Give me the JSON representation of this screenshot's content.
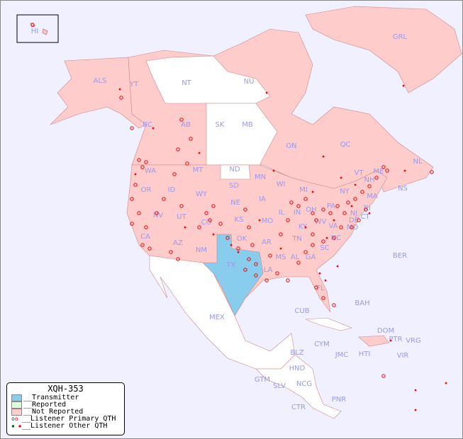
{
  "title": "XQH-353",
  "legend": {
    "transmitter": "__Transmitter",
    "reported": "__Reported",
    "not_reported": "__Not Reported",
    "primary": "__Listener Primary QTH",
    "other": "__Listener Other QTH"
  },
  "colors": {
    "transmitter": "#88ccee",
    "reported": "#ddffdd",
    "not_reported": "#ffcccc",
    "unlisted": "#ffffff",
    "ocean": "#f0f0ff",
    "dot": "#ee0000",
    "label": "#9999ee"
  },
  "transmitter_region": "TX",
  "labels": [
    "HI",
    "ALS",
    "YT",
    "NT",
    "NU",
    "GRL",
    "BC",
    "AB",
    "SK",
    "MB",
    "ON",
    "QC",
    "NL",
    "NS",
    "WA",
    "OR",
    "ID",
    "MT",
    "WY",
    "ND",
    "SD",
    "NE",
    "MN",
    "WI",
    "IA",
    "IL",
    "MI",
    "IN",
    "OH",
    "PA",
    "NY",
    "VT",
    "NH",
    "ME",
    "MA",
    "CT",
    "RI",
    "NJ",
    "DE",
    "MD",
    "WV",
    "VA",
    "KY",
    "TN",
    "NC",
    "SC",
    "GA",
    "FL",
    "AL",
    "MS",
    "LA",
    "AR",
    "MO",
    "KS",
    "OK",
    "TX",
    "NM",
    "AZ",
    "UT",
    "CO",
    "NV",
    "CA",
    "MEX",
    "BER",
    "BAH",
    "CUB",
    "DOM",
    "PTR",
    "VRG",
    "CYM",
    "JMC",
    "HTI",
    "VIR",
    "BLZ",
    "HND",
    "GTM",
    "SLV",
    "NCG",
    "CTR",
    "PNR"
  ]
}
